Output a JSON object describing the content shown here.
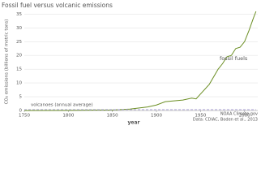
{
  "chart_data": {
    "type": "line",
    "title": "Fossil fuel versus volcanic emissions",
    "y_label": "CO₂ emissions (billions of metric tons)",
    "x_label": "year",
    "credits": [
      "NOAA Climate.gov",
      "Data: CDIAC, Boden et al., 2013"
    ],
    "xlim": [
      1750,
      2015
    ],
    "xticks": [
      1750,
      1800,
      1850,
      1900,
      1950,
      2000
    ],
    "ylim": [
      0,
      36
    ],
    "yticks": [
      0,
      5,
      10,
      15,
      20,
      25,
      30,
      35
    ],
    "grid": true,
    "series": [
      {
        "name": "fossil fuels",
        "color": "#6b8e23",
        "x": [
          1750,
          1800,
          1850,
          1870,
          1890,
          1900,
          1910,
          1920,
          1930,
          1940,
          1945,
          1950,
          1960,
          1970,
          1975,
          1980,
          1985,
          1990,
          1995,
          2000,
          2005,
          2010,
          2013
        ],
        "values": [
          0.01,
          0.03,
          0.2,
          0.5,
          1.3,
          2.0,
          3.2,
          3.5,
          3.8,
          4.5,
          4.2,
          6.0,
          9.5,
          15.0,
          17.0,
          19.5,
          20.0,
          22.5,
          23.0,
          25.0,
          29.0,
          33.5,
          36.0
        ]
      },
      {
        "name": "volcanoes (annual average)",
        "color": "#a99fd8",
        "x": [
          1750,
          2013
        ],
        "values": [
          0.3,
          0.3
        ]
      }
    ]
  }
}
